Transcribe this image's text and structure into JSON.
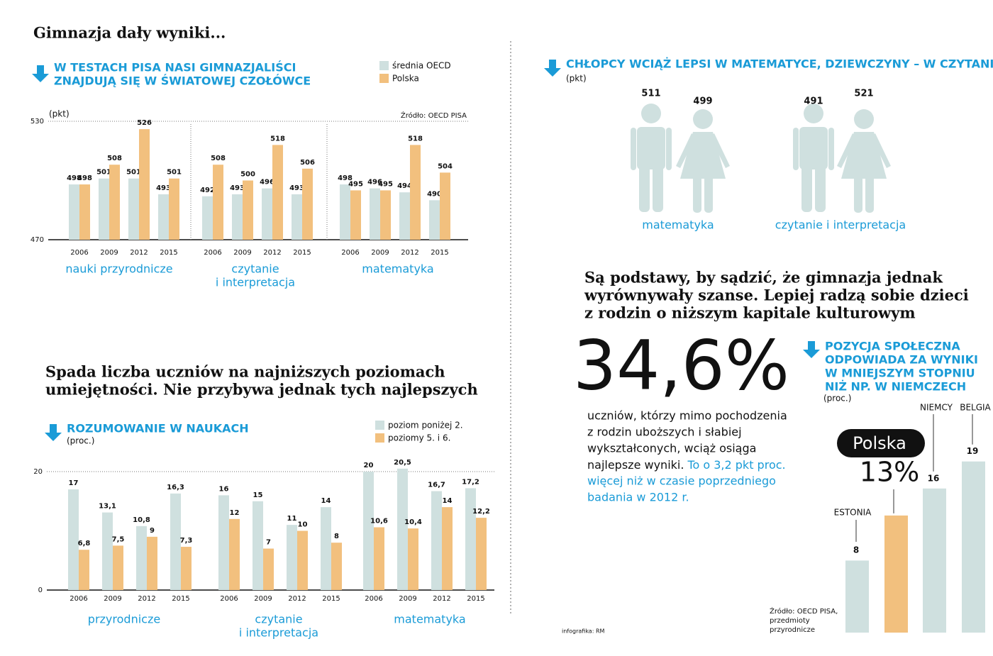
{
  "title": "Gimnazja dały wyniki...",
  "headings": [
    [
      "Spada liczba uczniów na najniższych poziomach",
      "umiejętności. Nie przybywa jednak tych najlepszych"
    ],
    [
      "Są podstawy, by sądzić, że gimnazja jednak",
      "wyrównywały szanse. Lepiej radzą sobie dzieci",
      "z rodzin o niższym kapitale kulturowym"
    ]
  ],
  "stat": {
    "label": "34,6%",
    "text": [
      "uczniów, którzy mimo pochodzenia",
      "z rodzin uboższych i słabiej",
      "wykształconych, wciąż osiąga",
      "najlepsze wyniki."
    ],
    "highlight": [
      "To o 3,2 pkt proc.",
      "więcej niż w czasie poprzedniego",
      "badania w 2012 r."
    ]
  },
  "credit": "infografika: RM",
  "chart_data": [
    {
      "type": "bar",
      "title": [
        "W TESTACH PISA NASI GIMNAZJALIŚCI",
        "ZNAJDUJĄ SIĘ W ŚWIATOWEJ CZOŁÓWCE"
      ],
      "ylabel": "(pkt)",
      "source": "Źródło: OECD PISA",
      "ylim": [
        470,
        530
      ],
      "yticks": [
        470,
        530
      ],
      "categories": [
        "2006",
        "2009",
        "2012",
        "2015",
        "2006",
        "2009",
        "2012",
        "2015",
        "2006",
        "2009",
        "2012",
        "2015"
      ],
      "groups": [
        [
          "nauki przyrodnicze"
        ],
        [
          "czytanie",
          "i interpretacja"
        ],
        [
          "matematyka"
        ]
      ],
      "series": [
        {
          "name": "średnia OECD",
          "color": "#cfe0df",
          "values": [
            498,
            501,
            501,
            493,
            492,
            493,
            496,
            493,
            498,
            496,
            494,
            490
          ]
        },
        {
          "name": "Polska",
          "color": "#f2c07e",
          "values": [
            498,
            508,
            526,
            501,
            508,
            500,
            518,
            506,
            495,
            495,
            518,
            504
          ]
        }
      ]
    },
    {
      "type": "bar",
      "title": [
        "ROZUMOWANIE W NAUKACH"
      ],
      "ylabel": "(proc.)",
      "ylim": [
        0,
        20
      ],
      "yticks": [
        0,
        20
      ],
      "categories": [
        "2006",
        "2009",
        "2012",
        "2015",
        "2006",
        "2009",
        "2012",
        "2015",
        "2006",
        "2009",
        "2012",
        "2015"
      ],
      "groups": [
        [
          "przyrodnicze"
        ],
        [
          "czytanie",
          "i interpretacja"
        ],
        [
          "matematyka"
        ]
      ],
      "series": [
        {
          "name": "poziom poniżej 2.",
          "color": "#cfe0df",
          "values": [
            17,
            13.1,
            10.8,
            16.3,
            16,
            15,
            11,
            14,
            20,
            20.5,
            16.7,
            17.2
          ],
          "value_labels": [
            "17",
            "13,1",
            "10,8",
            "16,3",
            "16",
            "15",
            "11",
            "14",
            "20",
            "20,5",
            "16,7",
            "17,2"
          ]
        },
        {
          "name": "poziomy 5. i 6.",
          "color": "#f2c07e",
          "values": [
            6.8,
            7.5,
            9,
            7.3,
            12,
            7,
            10,
            8,
            10.6,
            10.4,
            14,
            12.2
          ],
          "value_labels": [
            "6,8",
            "7,5",
            "9",
            "7,3",
            "12",
            "7",
            "10",
            "8",
            "10,6",
            "10,4",
            "14",
            "12,2"
          ]
        }
      ]
    },
    {
      "type": "pictogram",
      "title": "CHŁOPCY WCIĄŻ LEPSI W MATEMATYCE, DZIEWCZYNY – W CZYTANIU",
      "ylabel": "(pkt)",
      "categories": [
        "matematyka",
        "czytanie i interpretacja"
      ],
      "series": [
        {
          "color": "#cfe0df",
          "values": [
            511,
            491
          ]
        },
        {
          "color": "#cfe0df",
          "values": [
            499,
            521
          ]
        }
      ]
    },
    {
      "type": "bar",
      "title": [
        "POZYCJA SPOŁECZNA",
        "ODPOWIADA ZA WYNIKI",
        "W MNIEJSZYM STOPNIU",
        "NIŻ NP. W NIEMCZECH"
      ],
      "ylabel": "(proc.)",
      "categories": [
        "ESTONIA",
        "Polska",
        "NIEMCY",
        "BELGIA"
      ],
      "values": [
        8,
        13,
        16,
        19
      ],
      "value_labels": [
        "8",
        "13%",
        "16",
        "19"
      ],
      "colors": [
        "#cfe0df",
        "#f2c07e",
        "#cfe0df",
        "#cfe0df"
      ],
      "source": [
        "Źródło: OECD PISA,",
        "przedmioty",
        "przyrodnicze"
      ]
    }
  ]
}
